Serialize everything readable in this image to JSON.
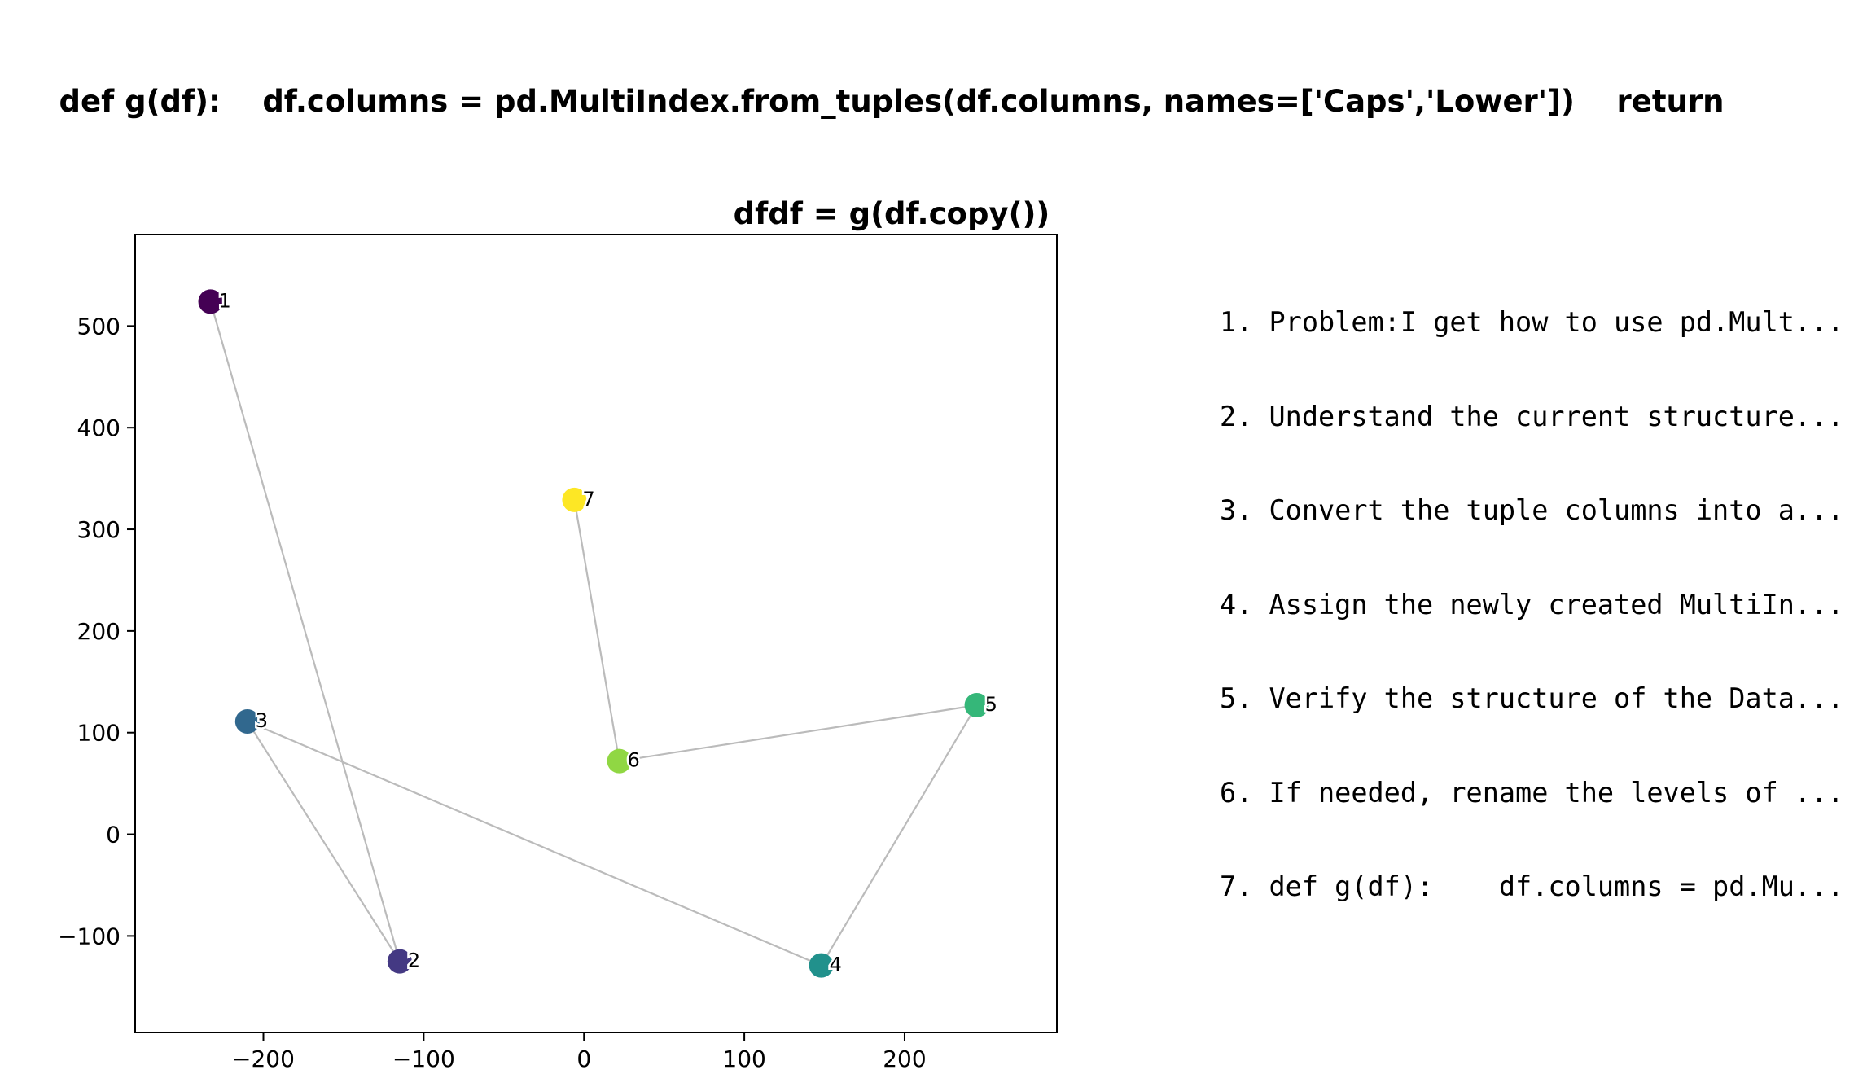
{
  "title": {
    "line1": "def g(df):    df.columns = pd.MultiIndex.from_tuples(df.columns, names=['Caps','Lower'])    return",
    "line2": "dfdf = g(df.copy())"
  },
  "steps": [
    "1. Problem:I get how to use pd.Mult...",
    "2. Understand the current structure...",
    "3. Convert the tuple columns into a...",
    "4. Assign the newly created MultiIn...",
    "5. Verify the structure of the Data...",
    "6. If needed, rename the levels of ...",
    "7. def g(df):    df.columns = pd.Mu..."
  ],
  "chart_data": {
    "type": "scatter",
    "xlim": [
      -280,
      295
    ],
    "ylim": [
      -195,
      590
    ],
    "xticks": [
      -200,
      -100,
      0,
      100,
      200
    ],
    "yticks": [
      -100,
      0,
      100,
      200,
      300,
      400,
      500
    ],
    "xtick_labels": [
      "−200",
      "−100",
      "0",
      "100",
      "200"
    ],
    "ytick_labels": [
      "−100",
      "0",
      "100",
      "200",
      "300",
      "400",
      "500"
    ],
    "grid": false,
    "points": [
      {
        "label": "1",
        "x": -233,
        "y": 524,
        "color": "#440154"
      },
      {
        "label": "2",
        "x": -115,
        "y": -125,
        "color": "#443983"
      },
      {
        "label": "3",
        "x": -210,
        "y": 111,
        "color": "#31688e"
      },
      {
        "label": "4",
        "x": 148,
        "y": -129,
        "color": "#21918c"
      },
      {
        "label": "5",
        "x": 245,
        "y": 127,
        "color": "#35b779"
      },
      {
        "label": "6",
        "x": 22,
        "y": 72,
        "color": "#90d743"
      },
      {
        "label": "7",
        "x": -6,
        "y": 329,
        "color": "#fde725"
      }
    ],
    "line_color": "#bbbbbb"
  }
}
